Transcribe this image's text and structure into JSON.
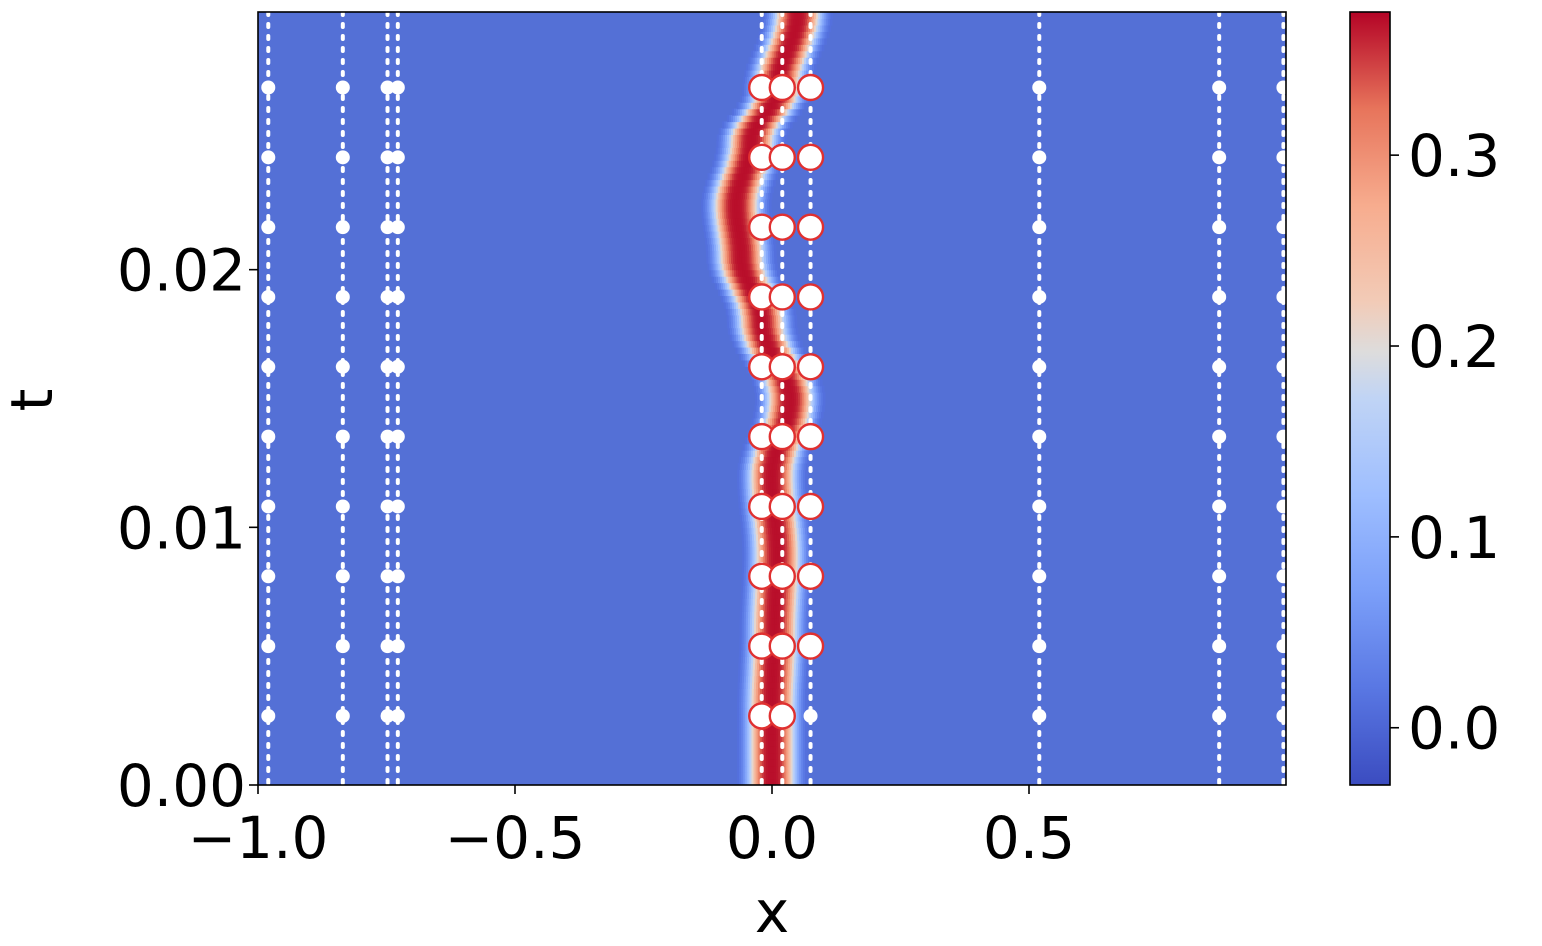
{
  "chart_data": {
    "type": "heatmap",
    "title": "",
    "xlabel": "x",
    "ylabel": "t",
    "xlim": [
      -1.0,
      1.0
    ],
    "ylim": [
      0.0,
      0.03
    ],
    "x_ticks": [
      {
        "value": -1.0,
        "label": "−1.0"
      },
      {
        "value": -0.5,
        "label": "−0.5"
      },
      {
        "value": 0.0,
        "label": "0.0"
      },
      {
        "value": 0.5,
        "label": "0.5"
      }
    ],
    "y_ticks": [
      {
        "value": 0.0,
        "label": "0.00"
      },
      {
        "value": 0.01,
        "label": "0.01"
      },
      {
        "value": 0.02,
        "label": "0.02"
      }
    ],
    "colormap": "coolwarm",
    "colors": {
      "low": "#3b4cc0",
      "mid": "#dddddd",
      "high": "#b40426",
      "background_field": "#5470d6",
      "sensor_marker": "#ffffff",
      "active_marker_edge": "#e03030"
    },
    "colorbar": {
      "range": [
        -0.03,
        0.375
      ],
      "ticks": [
        {
          "value": 0.0,
          "label": "0.0"
        },
        {
          "value": 0.1,
          "label": "0.1"
        },
        {
          "value": 0.2,
          "label": "0.2"
        },
        {
          "value": 0.3,
          "label": "0.3"
        }
      ]
    },
    "field": {
      "description_free": true,
      "peak_value": 0.37,
      "pulse_width_x": 0.045,
      "center_x_by_t": [
        [
          0.0,
          0.0
        ],
        [
          0.003,
          0.0
        ],
        [
          0.006,
          0.005
        ],
        [
          0.009,
          0.01
        ],
        [
          0.012,
          0.0
        ],
        [
          0.015,
          0.035
        ],
        [
          0.018,
          -0.02
        ],
        [
          0.0205,
          -0.06
        ],
        [
          0.0225,
          -0.07
        ],
        [
          0.025,
          -0.04
        ],
        [
          0.027,
          0.01
        ],
        [
          0.03,
          0.05
        ]
      ]
    },
    "sensor_x": [
      -0.98,
      -0.835,
      -0.748,
      -0.728,
      -0.02,
      0.02,
      0.075,
      0.52,
      0.87,
      0.995
    ],
    "sample_t": [
      0.00268,
      0.00539,
      0.0081,
      0.01081,
      0.01352,
      0.01623,
      0.01894,
      0.02165,
      0.02436,
      0.02707
    ],
    "active_markers": [
      {
        "x": -0.02,
        "t": [
          0.00268,
          0.00539,
          0.0081,
          0.01081,
          0.01352,
          0.01623,
          0.01894,
          0.02165,
          0.02436,
          0.02707
        ]
      },
      {
        "x": 0.02,
        "t": [
          0.00268,
          0.00539,
          0.0081,
          0.01081,
          0.01352,
          0.01623,
          0.01894,
          0.02165,
          0.02436,
          0.02707
        ]
      },
      {
        "x": 0.075,
        "t": [
          0.00539,
          0.0081,
          0.01081,
          0.01352,
          0.01623,
          0.01894,
          0.02165,
          0.02436,
          0.02707
        ]
      }
    ]
  }
}
